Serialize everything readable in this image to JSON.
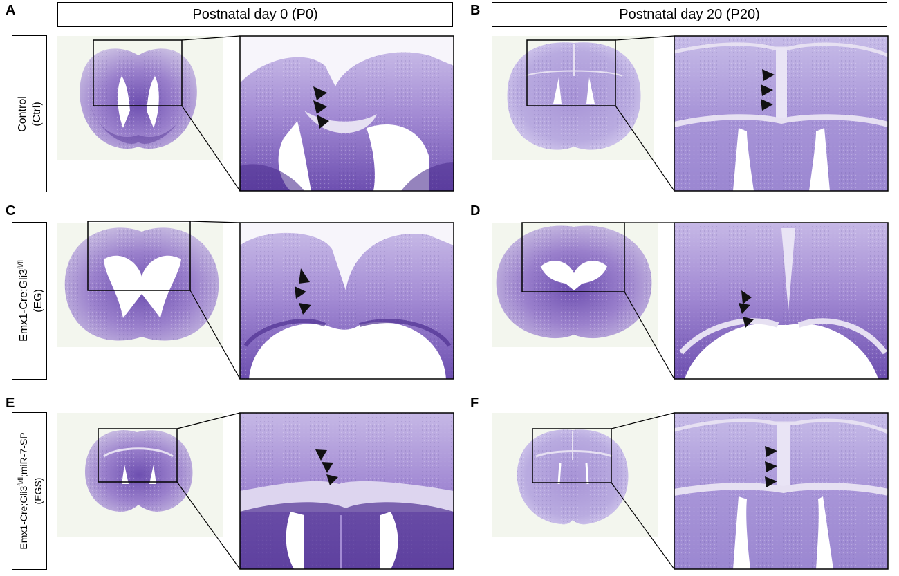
{
  "columns": [
    {
      "panel_top": "A",
      "panel_bottom_rows": [
        "A",
        "C",
        "E"
      ],
      "header": "Postnatal day 0 (P0)"
    },
    {
      "header": "Postnatal day 20 (P20)"
    }
  ],
  "panels": [
    "A",
    "B",
    "C",
    "D",
    "E",
    "F"
  ],
  "rows": [
    {
      "line1": "Control",
      "line2": "(Ctrl)"
    },
    {
      "line1_pre": "Emx1-Cre;Gli3",
      "line1_sup": "fl/fl",
      "line1_post": "",
      "line2": "(EG)"
    },
    {
      "line1_pre": "Emx1-Cre;Gli3",
      "line1_sup": "fl/fl",
      "line1_post": ";miR-7-SP",
      "line2": "(EGS)"
    }
  ],
  "colors": {
    "stain_dark": "#5a3c9a",
    "stain_mid": "#8f73c4",
    "stain_light": "#c9bde2",
    "tissue_pale": "#e4dcf0",
    "background_tint": "#f3f6ee",
    "ventricle": "#ffffff",
    "arrowhead": "#111111"
  },
  "icons": {
    "arrowhead": "black-triangle-arrowhead-icon"
  }
}
